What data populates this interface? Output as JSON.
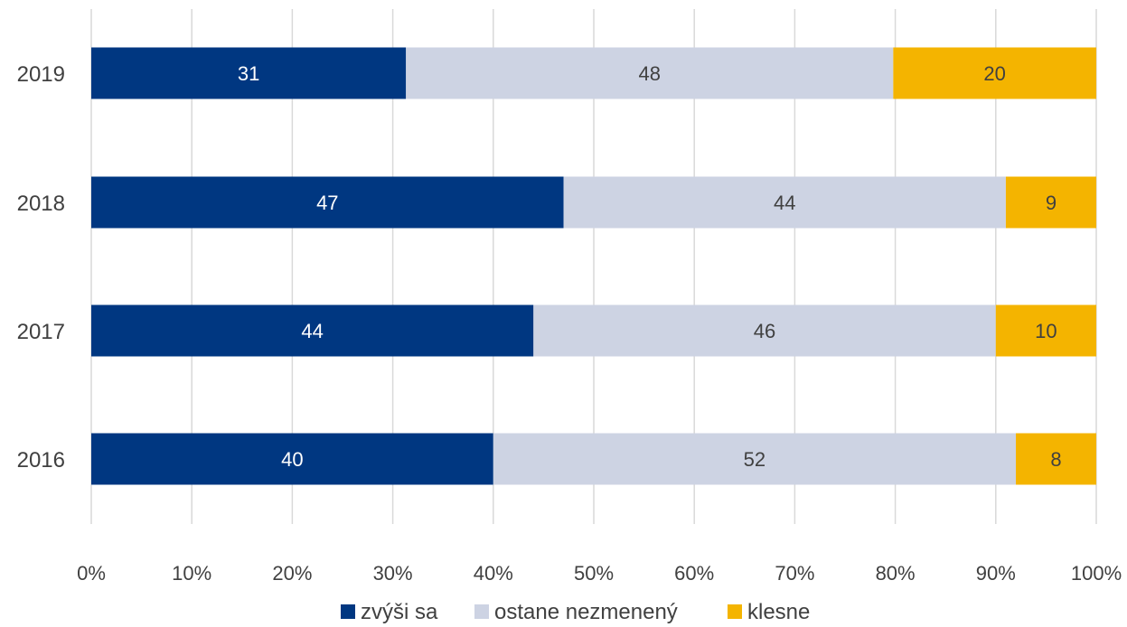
{
  "chart_data": {
    "type": "bar",
    "orientation": "horizontal",
    "stacked": "percent",
    "categories": [
      "2019",
      "2018",
      "2017",
      "2016"
    ],
    "series": [
      {
        "name": "zvýši sa",
        "values": [
          31,
          47,
          44,
          40
        ],
        "color": "#003781",
        "label_color": "#ffffff"
      },
      {
        "name": "ostane nezmenený",
        "values": [
          48,
          44,
          46,
          52
        ],
        "color": "#cdd3e3",
        "label_color": "#404040"
      },
      {
        "name": "klesne",
        "values": [
          20,
          9,
          10,
          8
        ],
        "color": "#f4b400",
        "label_color": "#404040"
      }
    ],
    "x_ticks": [
      "0%",
      "10%",
      "20%",
      "30%",
      "40%",
      "50%",
      "60%",
      "70%",
      "80%",
      "90%",
      "100%"
    ],
    "xlim": [
      0,
      100
    ],
    "grid": true,
    "gridline_color": "#d9d9d9",
    "legend_position": "bottom",
    "title": "",
    "xlabel": "",
    "ylabel": ""
  }
}
